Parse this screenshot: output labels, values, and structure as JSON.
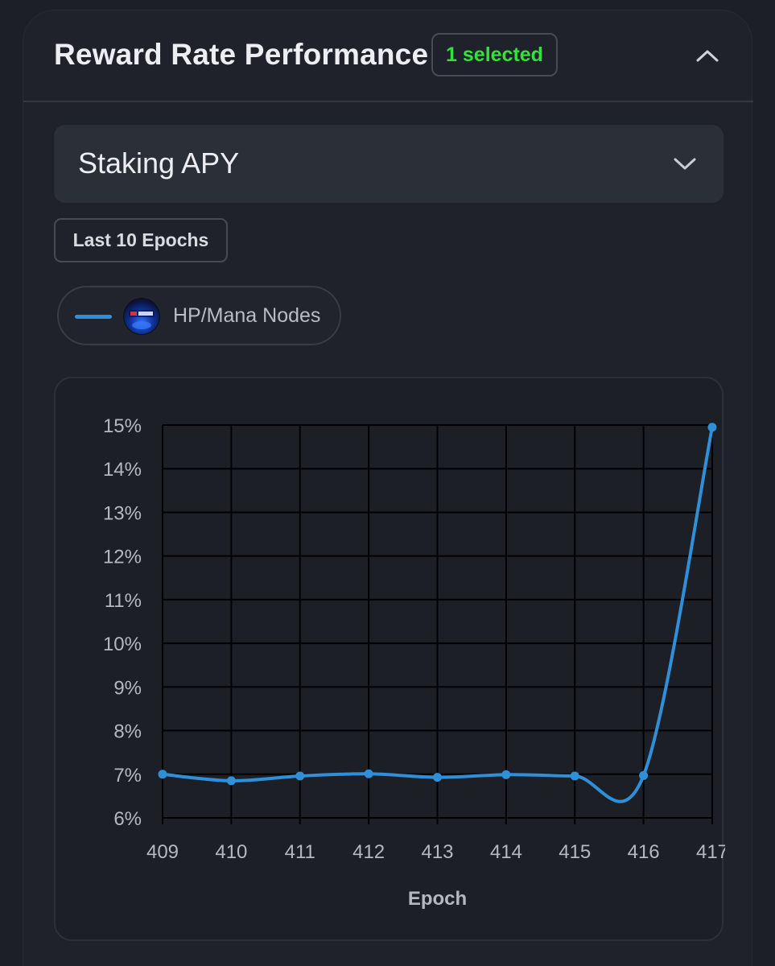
{
  "header": {
    "title": "Reward Rate Performance",
    "badge": "1 selected",
    "collapse_icon": "chevron-up-icon"
  },
  "metric_select": {
    "value": "Staking APY",
    "icon": "chevron-down-icon"
  },
  "range_button": {
    "label": "Last 10 Epochs"
  },
  "legend": {
    "items": [
      {
        "label": "HP/Mana Nodes",
        "color": "#2f8fd8",
        "avatar": "hp-mana-logo"
      }
    ]
  },
  "colors": {
    "accent_green": "#35e03a",
    "series_blue": "#2f8fd8",
    "background": "#1c1f26"
  },
  "chart_data": {
    "type": "line",
    "title": "",
    "xlabel": "Epoch",
    "ylabel": "",
    "x": [
      409,
      410,
      411,
      412,
      413,
      414,
      415,
      416,
      417
    ],
    "series": [
      {
        "name": "HP/Mana Nodes",
        "values": [
          7.0,
          6.85,
          6.96,
          7.01,
          6.93,
          6.99,
          6.96,
          6.97,
          14.95
        ]
      }
    ],
    "ylim": [
      6,
      15
    ],
    "yticks": [
      6,
      7,
      8,
      9,
      10,
      11,
      12,
      13,
      14,
      15
    ],
    "ytick_labels": [
      "6%",
      "7%",
      "8%",
      "9%",
      "10%",
      "11%",
      "12%",
      "13%",
      "14%",
      "15%"
    ],
    "xtick_labels": [
      "409",
      "410",
      "411",
      "412",
      "413",
      "414",
      "415",
      "416",
      "417"
    ],
    "grid": true,
    "smooth": true
  }
}
